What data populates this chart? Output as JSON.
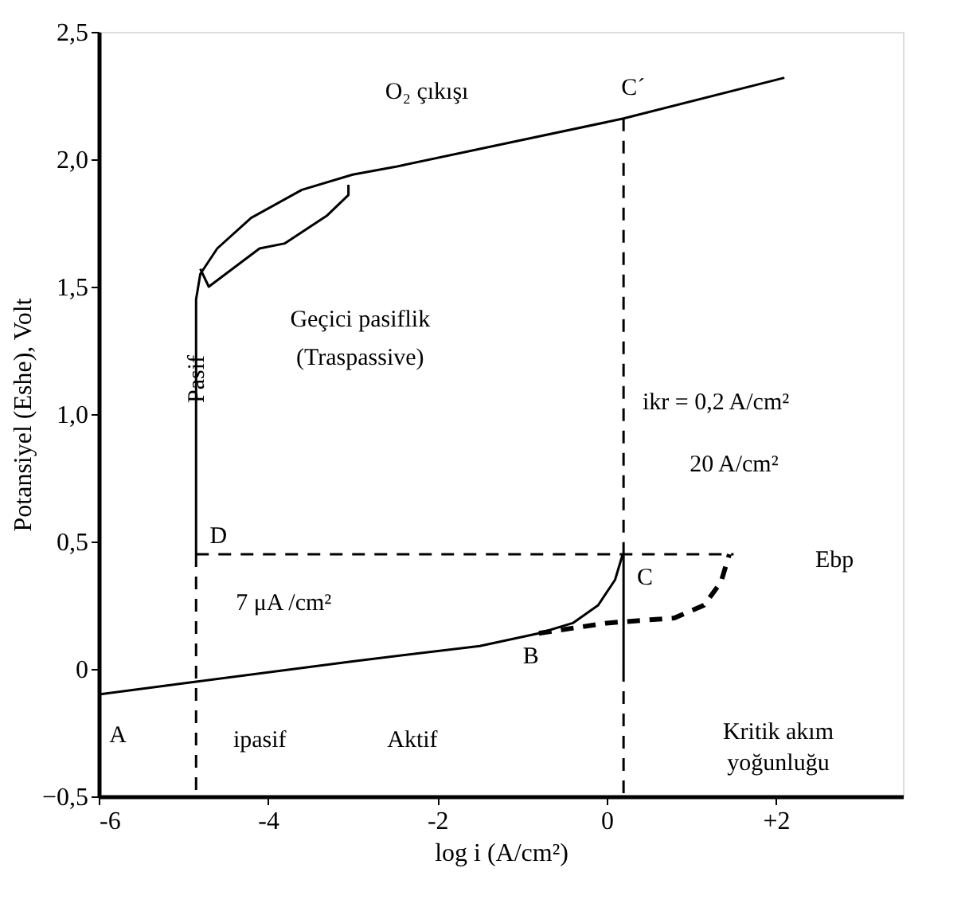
{
  "chart_data": {
    "type": "line",
    "xlabel": "log i (A/cm²)",
    "ylabel": "Potansiyel (Eshe), Volt",
    "xlim": [
      -6,
      3.5
    ],
    "ylim": [
      -0.5,
      2.5
    ],
    "xticks": [
      -6,
      -4,
      -2,
      0,
      {
        "value": 2,
        "label": "+2"
      }
    ],
    "yticks": [
      {
        "value": -0.5,
        "label": "−0,5"
      },
      0,
      {
        "value": 0.5,
        "label": "0,5"
      },
      {
        "value": 1,
        "label": "1,0"
      },
      {
        "value": 1.5,
        "label": "1,5"
      },
      {
        "value": 2,
        "label": "2,0"
      },
      {
        "value": 2.5,
        "label": "2,5"
      }
    ],
    "grid": false,
    "marker": "none",
    "series": [
      {
        "color": "#000000",
        "line_style": "solid",
        "x": [
          -6,
          -4.85,
          -3,
          -1.5,
          -0.8,
          -0.4,
          -0.1,
          0.1,
          0.19
        ],
        "values": [
          -0.1,
          -0.05,
          0.03,
          0.09,
          0.14,
          0.18,
          0.25,
          0.35,
          0.45
        ]
      },
      {
        "color": "#000000",
        "line_style": "dashed",
        "x": [
          -0.8,
          0,
          0.8,
          1.15,
          1.35,
          1.45
        ],
        "values": [
          0.14,
          0.18,
          0.2,
          0.25,
          0.34,
          0.45
        ]
      },
      {
        "color": "#000000",
        "line_style": "solid",
        "x": [
          -4.85,
          -4.85,
          -4.8,
          -4.6,
          -4.2,
          -3.6,
          -3.0,
          -2.5,
          0.2,
          2.1
        ],
        "values": [
          0.45,
          1.45,
          1.55,
          1.65,
          1.77,
          1.88,
          1.94,
          1.97,
          2.16,
          2.32
        ]
      },
      {
        "color": "#000000",
        "line_style": "solid",
        "x": [
          -4.8,
          -4.7,
          -4.5,
          -4.1,
          -3.8,
          -3.3,
          -3.05,
          -3.05
        ],
        "values": [
          1.57,
          1.5,
          1.55,
          1.65,
          1.67,
          1.78,
          1.86,
          1.9
        ]
      },
      {
        "color": "#000000",
        "line_style": "dashed",
        "x": [
          -4.85,
          1.5
        ],
        "values": [
          0.45,
          0.45
        ]
      },
      {
        "color": "#000000",
        "line_style": "dashed",
        "x": [
          -4.85,
          -4.85
        ],
        "values": [
          0.45,
          -0.5
        ]
      },
      {
        "color": "#000000",
        "line_style": "dashed",
        "x": [
          0.2,
          0.2
        ],
        "values": [
          2.16,
          0.45
        ]
      },
      {
        "color": "#000000",
        "line_style": "solid",
        "x": [
          0.2,
          0.2
        ],
        "values": [
          0.45,
          0.0
        ]
      },
      {
        "color": "#000000",
        "line_style": "dashed",
        "x": [
          0.2,
          0.2
        ],
        "values": [
          0.0,
          -0.5
        ]
      }
    ],
    "annotations": [
      {
        "text": "A",
        "x": -6,
        "y": -0.1
      },
      {
        "text": "B",
        "x": -0.8,
        "y": 0.14
      },
      {
        "text": "C",
        "x": 0.19,
        "y": 0.45
      },
      {
        "text": "C´",
        "x": 0.2,
        "y": 2.16
      },
      {
        "text": "D",
        "x": -4.85,
        "y": 0.45
      },
      {
        "text": "Pasif",
        "x": -4.85,
        "y": 1.0
      },
      {
        "text": "O₂ çıkışı",
        "x": -2.5,
        "y": 1.97
      },
      "Geçici pasiflik",
      "(Traspassive)",
      {
        "text": "ikr = 0,2 A/cm²",
        "x": 0.2,
        "y": 1.05
      },
      "20 A/cm²",
      "Ebp",
      {
        "text": "7 μA /cm²",
        "x": -4.85,
        "y": 0.45
      },
      {
        "text": "ipasif",
        "x": -4.85,
        "y": -0.5
      },
      "Aktif",
      "Kritik akım",
      "yoğunluğu"
    ]
  }
}
